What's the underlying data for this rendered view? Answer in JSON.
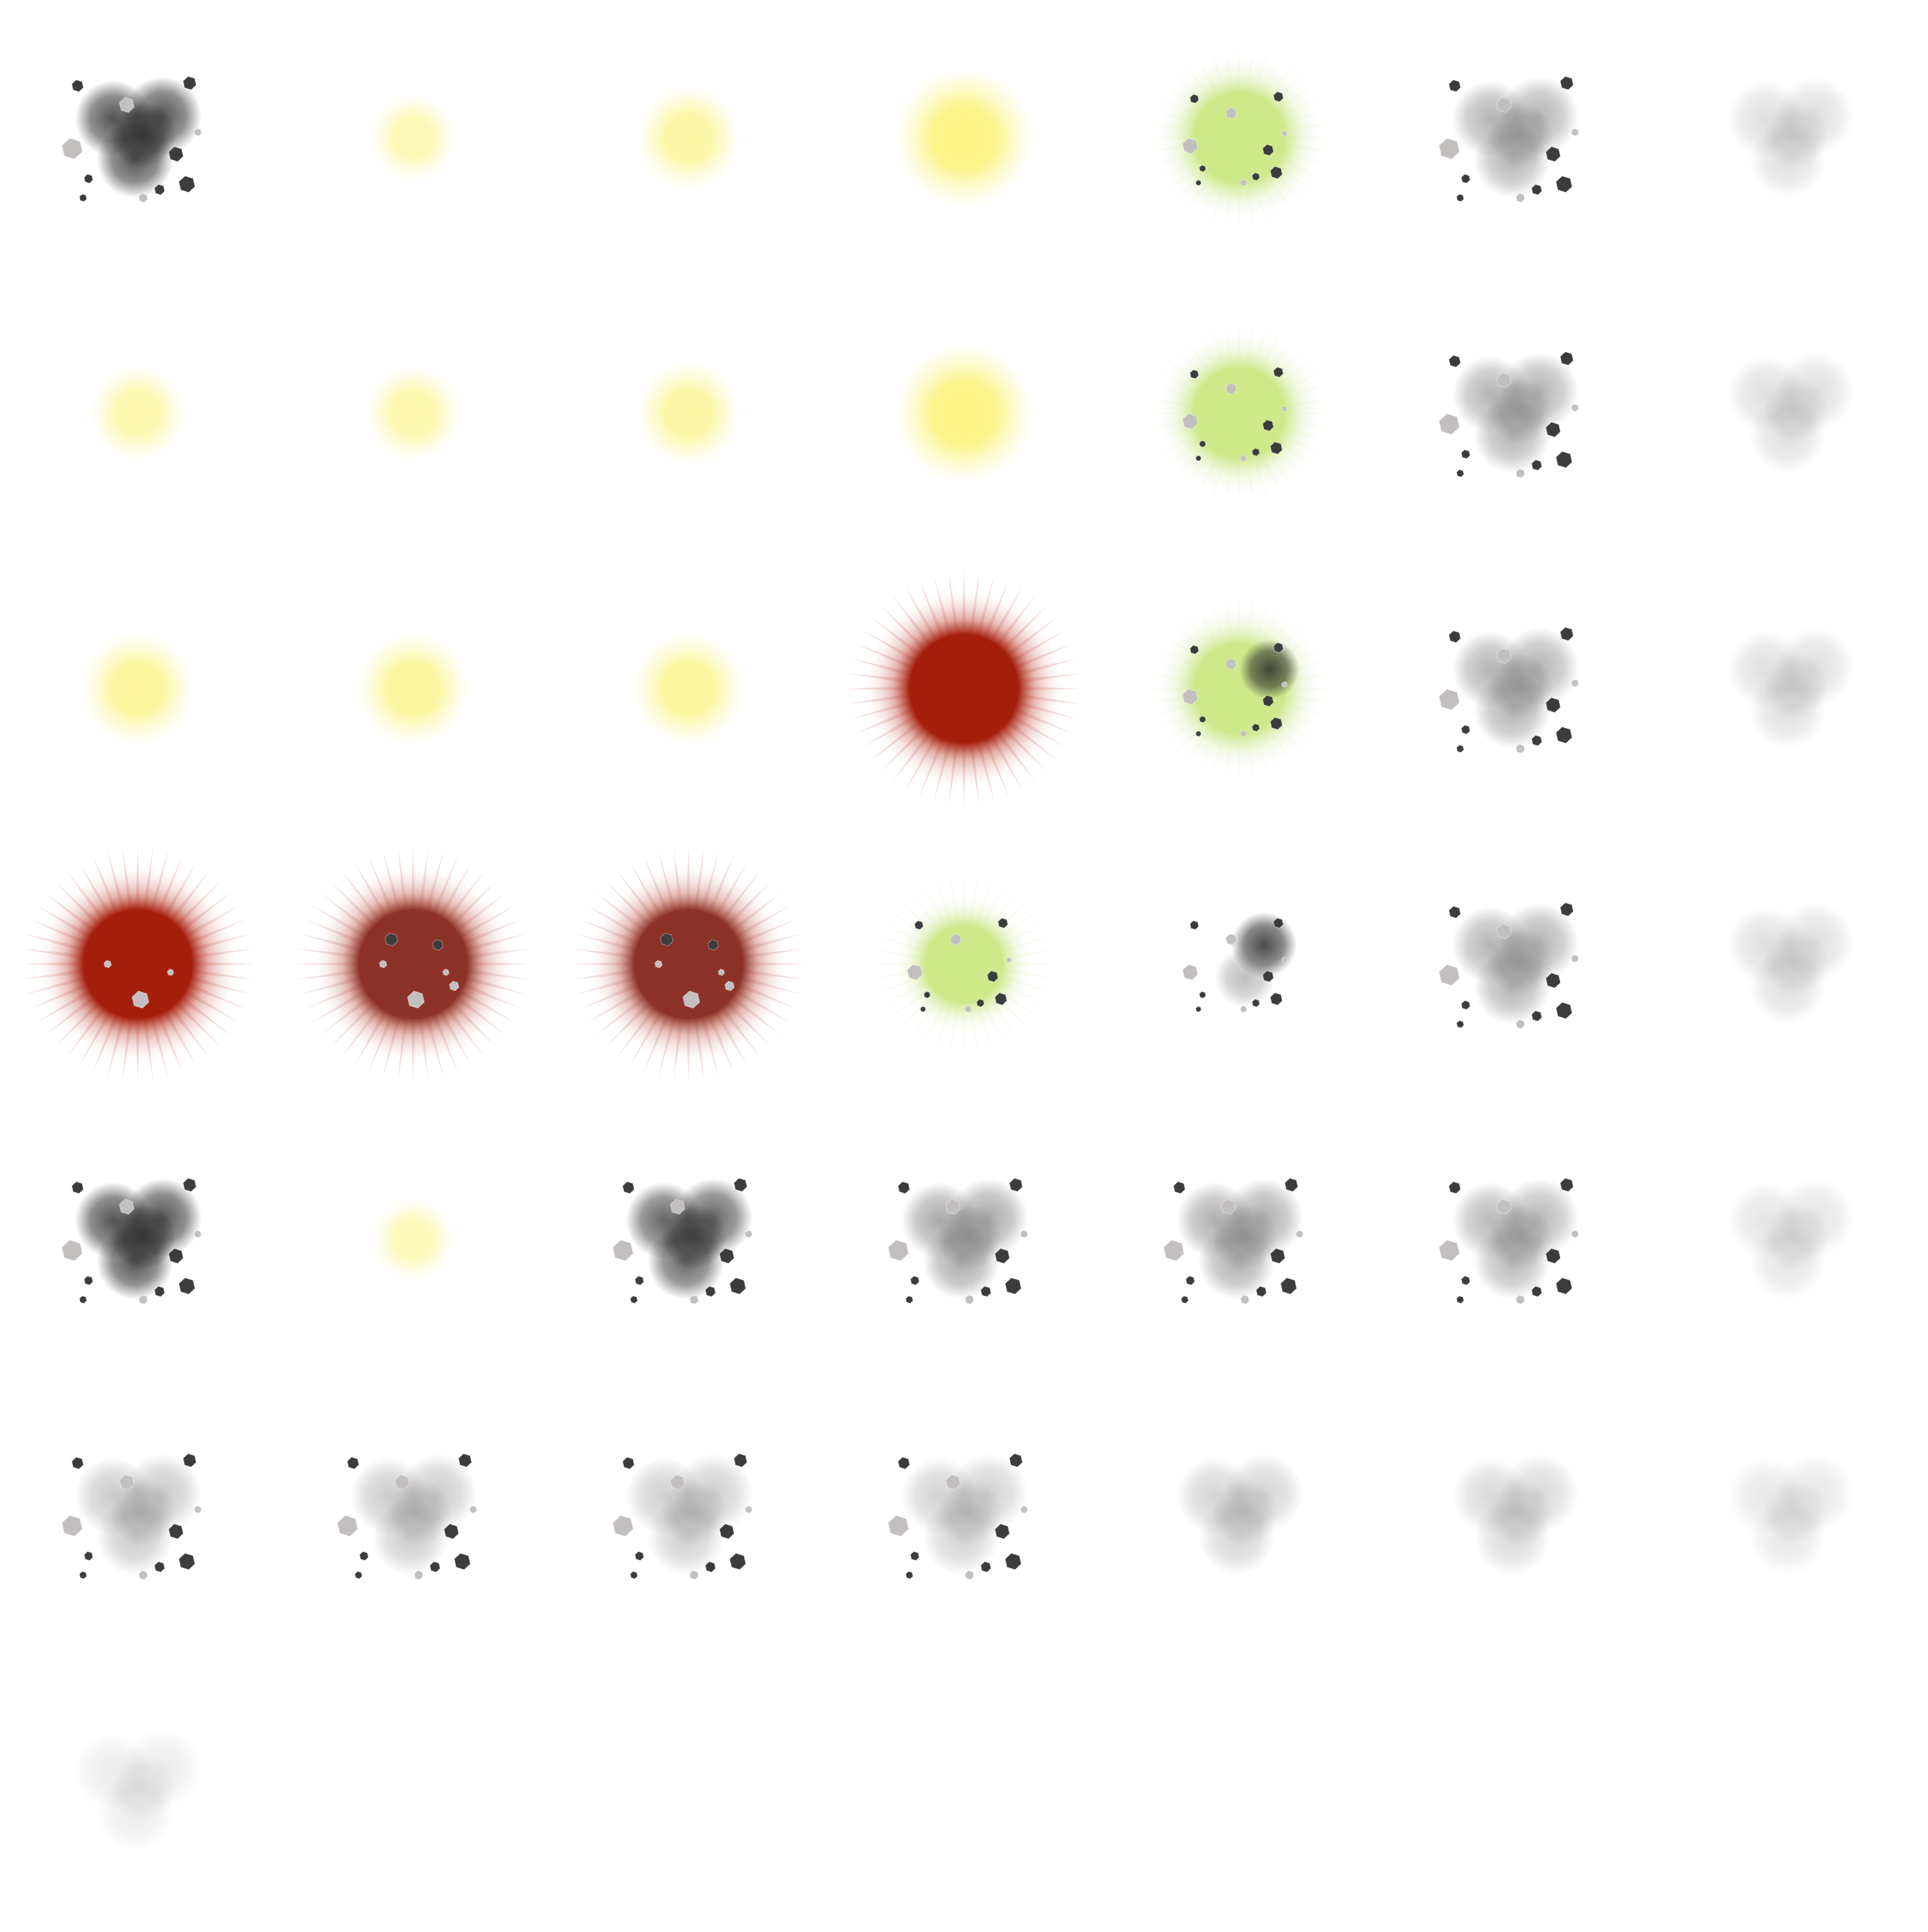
{
  "sheet": {
    "kind": "explosion-sprite-sheet",
    "columns": 7,
    "frame_count": 43,
    "background": "#ffffff"
  },
  "palette": {
    "flash_yellow": "#fcf27a",
    "fire_red": "#a41e0c",
    "fire_red_dark": "#8c3228",
    "toxic_green": "#cfe88a",
    "smoke_dark": "#2a2a2a",
    "smoke_grey": "#7a7a7a",
    "rock_dark": "#3c3c3c",
    "rock_light": "#c4bfbf"
  },
  "frames": [
    {
      "type": "smoke",
      "level": 0.95,
      "debris": true
    },
    {
      "type": "glow",
      "level": 0.35
    },
    {
      "type": "glow",
      "level": 0.55
    },
    {
      "type": "glow",
      "level": 0.95
    },
    {
      "type": "green",
      "level": 1.0,
      "debris": true
    },
    {
      "type": "smoke",
      "level": 0.7,
      "debris": true
    },
    {
      "type": "smoke",
      "level": 0.3,
      "debris": false
    },
    {
      "type": "glow",
      "level": 0.45
    },
    {
      "type": "glow",
      "level": 0.45
    },
    {
      "type": "glow",
      "level": 0.55
    },
    {
      "type": "glow",
      "level": 0.95
    },
    {
      "type": "green",
      "level": 1.0,
      "debris": true
    },
    {
      "type": "smoke",
      "level": 0.7,
      "debris": true
    },
    {
      "type": "smoke",
      "level": 0.3,
      "debris": false
    },
    {
      "type": "glow",
      "level": 0.65
    },
    {
      "type": "glow",
      "level": 0.65
    },
    {
      "type": "glow",
      "level": 0.65
    },
    {
      "type": "redburst",
      "level": 1.0,
      "debris": false
    },
    {
      "type": "green-smoke",
      "level": 1.0,
      "debris": true
    },
    {
      "type": "smoke",
      "level": 0.7,
      "debris": true
    },
    {
      "type": "smoke",
      "level": 0.3,
      "debris": false
    },
    {
      "type": "redburst",
      "level": 1.0,
      "debris": true
    },
    {
      "type": "redburst-dark",
      "level": 1.0,
      "debris": true
    },
    {
      "type": "redburst-dark",
      "level": 1.0,
      "debris": true
    },
    {
      "type": "green",
      "level": 0.85,
      "debris": true
    },
    {
      "type": "debris-smoke",
      "level": 1.0,
      "debris": true
    },
    {
      "type": "smoke",
      "level": 0.7,
      "debris": true
    },
    {
      "type": "smoke",
      "level": 0.3,
      "debris": false
    },
    {
      "type": "smoke",
      "level": 0.95,
      "debris": true
    },
    {
      "type": "glow",
      "level": 0.3
    },
    {
      "type": "smoke",
      "level": 0.85,
      "debris": true
    },
    {
      "type": "smoke",
      "level": 0.8,
      "debris": true
    },
    {
      "type": "smoke",
      "level": 0.75,
      "debris": true
    },
    {
      "type": "smoke",
      "level": 0.65,
      "debris": true
    },
    {
      "type": "smoke",
      "level": 0.25,
      "debris": false
    },
    {
      "type": "smoke",
      "level": 0.5,
      "debris": true
    },
    {
      "type": "smoke",
      "level": 0.48,
      "debris": true
    },
    {
      "type": "smoke",
      "level": 0.45,
      "debris": true
    },
    {
      "type": "smoke",
      "level": 0.42,
      "debris": true
    },
    {
      "type": "smoke",
      "level": 0.4,
      "debris": false
    },
    {
      "type": "smoke",
      "level": 0.35,
      "debris": false
    },
    {
      "type": "smoke",
      "level": 0.22,
      "debris": false
    },
    {
      "type": "smoke",
      "level": 0.18,
      "debris": false
    }
  ]
}
